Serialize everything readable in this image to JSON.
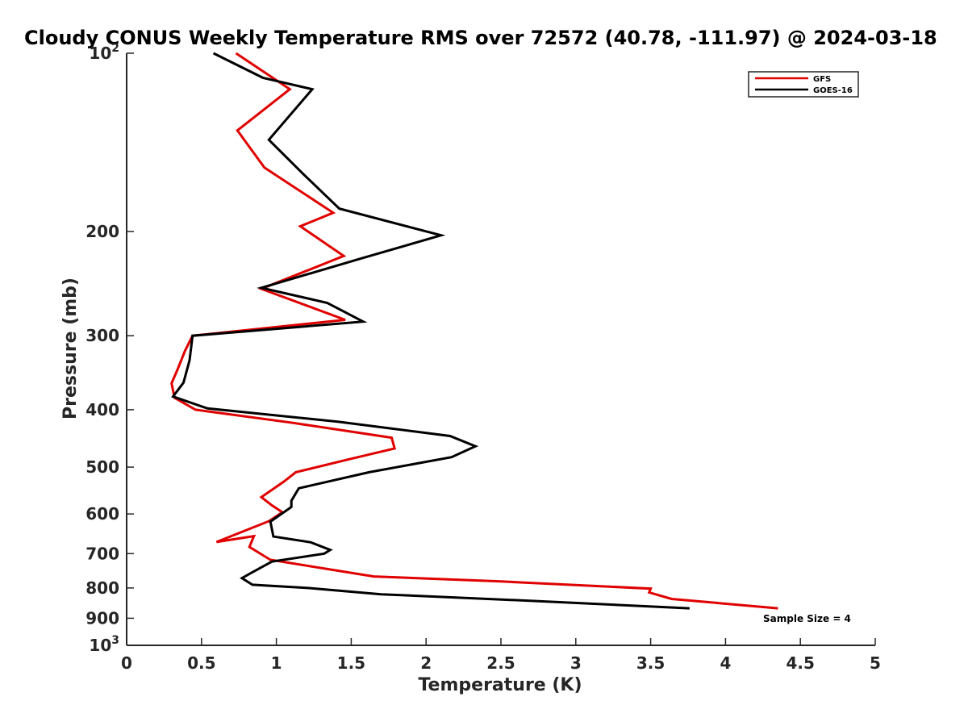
{
  "chart_data": {
    "type": "line",
    "title": "Cloudy CONUS Weekly Temperature RMS over 72572 (40.78, -111.97) @ 2024-03-18",
    "xlabel": "Temperature (K)",
    "ylabel": "Pressure (mb)",
    "xlim": [
      0,
      5
    ],
    "ylim": [
      100,
      1000
    ],
    "yscale": "log",
    "y_reversed": true,
    "xticks": [
      0,
      0.5,
      1,
      1.5,
      2,
      2.5,
      3,
      3.5,
      4,
      4.5,
      5
    ],
    "xtick_labels": [
      "0",
      "0.5",
      "1",
      "1.5",
      "2",
      "2.5",
      "3",
      "3.5",
      "4",
      "4.5",
      "5"
    ],
    "yticks": [
      {
        "value": 100,
        "base": "10",
        "exp": "2"
      },
      {
        "value": 200,
        "label": "200"
      },
      {
        "value": 300,
        "label": "300"
      },
      {
        "value": 400,
        "label": "400"
      },
      {
        "value": 500,
        "label": "500"
      },
      {
        "value": 600,
        "label": "600"
      },
      {
        "value": 700,
        "label": "700"
      },
      {
        "value": 800,
        "label": "800"
      },
      {
        "value": 900,
        "label": "900"
      },
      {
        "value": 1000,
        "base": "10",
        "exp": "3"
      }
    ],
    "legend_position": "top-right",
    "series": [
      {
        "name": "GFS",
        "color": "#e00000",
        "points": [
          [
            0.73,
            100
          ],
          [
            1.09,
            115
          ],
          [
            0.74,
            135
          ],
          [
            0.92,
            156
          ],
          [
            1.38,
            186
          ],
          [
            1.16,
            196
          ],
          [
            1.45,
            220
          ],
          [
            0.9,
            250
          ],
          [
            1.46,
            282
          ],
          [
            0.44,
            300
          ],
          [
            0.39,
            318
          ],
          [
            0.34,
            342
          ],
          [
            0.3,
            361
          ],
          [
            0.32,
            382
          ],
          [
            0.46,
            400
          ],
          [
            1.11,
            421
          ],
          [
            1.77,
            446
          ],
          [
            1.79,
            465
          ],
          [
            1.5,
            484
          ],
          [
            1.13,
            510
          ],
          [
            1.05,
            529
          ],
          [
            0.9,
            562
          ],
          [
            0.97,
            580
          ],
          [
            1.04,
            596
          ],
          [
            0.95,
            617
          ],
          [
            0.6,
            669
          ],
          [
            0.78,
            658
          ],
          [
            0.85,
            654
          ],
          [
            0.82,
            682
          ],
          [
            0.96,
            717
          ],
          [
            1.65,
            765
          ],
          [
            2.5,
            780
          ],
          [
            3.5,
            802
          ],
          [
            3.49,
            814
          ],
          [
            3.64,
            835
          ],
          [
            4.35,
            866
          ]
        ]
      },
      {
        "name": "GOES-16",
        "color": "#000000",
        "points": [
          [
            0.58,
            100
          ],
          [
            0.91,
            110
          ],
          [
            1.24,
            115
          ],
          [
            0.95,
            140
          ],
          [
            1.18,
            160
          ],
          [
            1.42,
            183
          ],
          [
            2.1,
            203
          ],
          [
            1.57,
            222
          ],
          [
            0.9,
            249
          ],
          [
            1.34,
            264
          ],
          [
            1.58,
            284
          ],
          [
            0.44,
            300
          ],
          [
            0.42,
            330
          ],
          [
            0.38,
            360
          ],
          [
            0.31,
            380
          ],
          [
            0.54,
            398
          ],
          [
            1.41,
            419
          ],
          [
            2.16,
            443
          ],
          [
            2.33,
            461
          ],
          [
            2.17,
            481
          ],
          [
            1.62,
            510
          ],
          [
            1.15,
            543
          ],
          [
            1.1,
            570
          ],
          [
            1.1,
            584
          ],
          [
            0.96,
            618
          ],
          [
            0.98,
            655
          ],
          [
            1.23,
            670
          ],
          [
            1.36,
            690
          ],
          [
            1.32,
            700
          ],
          [
            0.97,
            722
          ],
          [
            0.83,
            755
          ],
          [
            0.77,
            770
          ],
          [
            0.84,
            790
          ],
          [
            1.21,
            800
          ],
          [
            1.7,
            820
          ],
          [
            2.65,
            840
          ],
          [
            3.76,
            866
          ]
        ]
      }
    ],
    "annotation": "Sample Size = 4"
  }
}
